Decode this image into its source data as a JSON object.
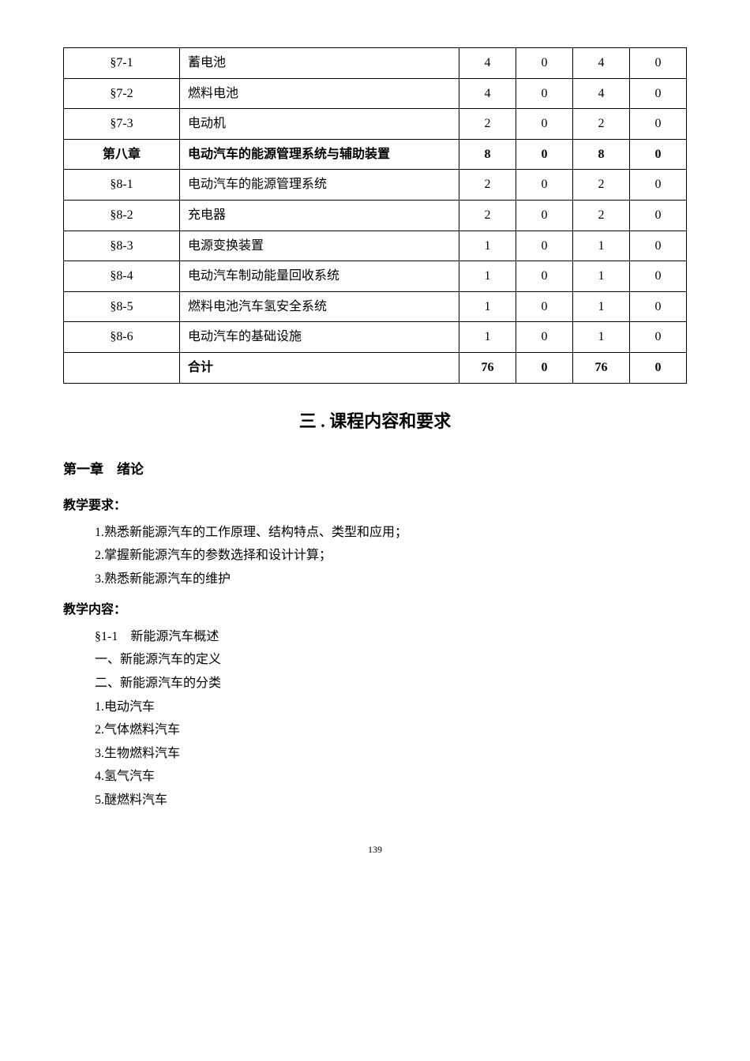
{
  "table": {
    "rows": [
      {
        "section": "§7-1",
        "label": "蓄电池",
        "c1": "4",
        "c2": "0",
        "c3": "4",
        "c4": "0",
        "bold": false
      },
      {
        "section": "§7-2",
        "label": "燃料电池",
        "c1": "4",
        "c2": "0",
        "c3": "4",
        "c4": "0",
        "bold": false
      },
      {
        "section": "§7-3",
        "label": "电动机",
        "c1": "2",
        "c2": "0",
        "c3": "2",
        "c4": "0",
        "bold": false
      },
      {
        "section": "第八章",
        "label": "电动汽车的能源管理系统与辅助装置",
        "c1": "8",
        "c2": "0",
        "c3": "8",
        "c4": "0",
        "bold": true
      },
      {
        "section": "§8-1",
        "label": "电动汽车的能源管理系统",
        "c1": "2",
        "c2": "0",
        "c3": "2",
        "c4": "0",
        "bold": false
      },
      {
        "section": "§8-2",
        "label": "充电器",
        "c1": "2",
        "c2": "0",
        "c3": "2",
        "c4": "0",
        "bold": false
      },
      {
        "section": "§8-3",
        "label": "电源变换装置",
        "c1": "1",
        "c2": "0",
        "c3": "1",
        "c4": "0",
        "bold": false
      },
      {
        "section": "§8-4",
        "label": "电动汽车制动能量回收系统",
        "c1": "1",
        "c2": "0",
        "c3": "1",
        "c4": "0",
        "bold": false
      },
      {
        "section": "§8-5",
        "label": "燃料电池汽车氢安全系统",
        "c1": "1",
        "c2": "0",
        "c3": "1",
        "c4": "0",
        "bold": false
      },
      {
        "section": "§8-6",
        "label": "电动汽车的基础设施",
        "c1": "1",
        "c2": "0",
        "c3": "1",
        "c4": "0",
        "bold": false
      },
      {
        "section": "",
        "label": "合计",
        "c1": "76",
        "c2": "0",
        "c3": "76",
        "c4": "0",
        "bold": true
      }
    ]
  },
  "main_heading": "三 . 课程内容和要求",
  "chapter_heading": "第一章　绪论",
  "teaching_req_heading": "教学要求：",
  "teaching_reqs": [
    "1.熟悉新能源汽车的工作原理、结构特点、类型和应用；",
    "2.掌握新能源汽车的参数选择和设计计算；",
    "3.熟悉新能源汽车的维护"
  ],
  "teaching_content_heading": "教学内容：",
  "teaching_contents": [
    "§1-1　新能源汽车概述",
    "一、新能源汽车的定义",
    "二、新能源汽车的分类",
    "1.电动汽车",
    "2.气体燃料汽车",
    "3.生物燃料汽车",
    "4.氢气汽车",
    "5.醚燃料汽车"
  ],
  "page_number": "139"
}
